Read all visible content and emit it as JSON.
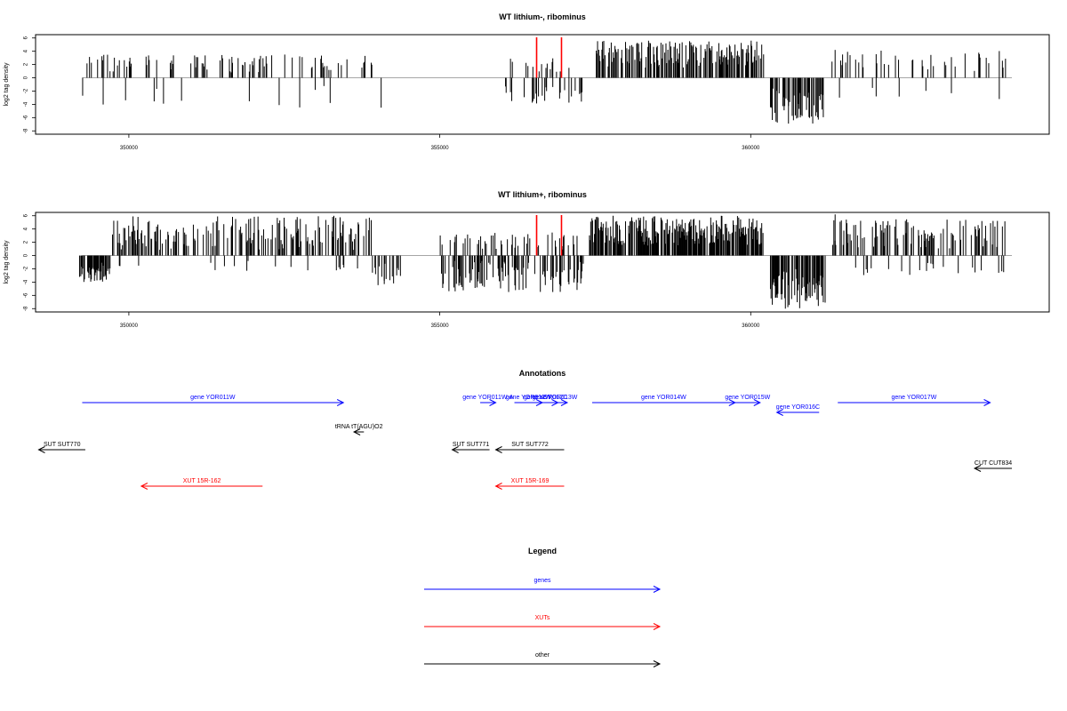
{
  "colors": {
    "gene": "#0000ff",
    "xut": "#ff0000",
    "other": "#000000",
    "mark": "#ff0000",
    "bar": "#000000",
    "axis": "#000000"
  },
  "chart_data": [
    {
      "type": "bar",
      "title": "WT lithium-, ribominus",
      "ylabel": "log2 tag density",
      "xlim": [
        348500,
        364800
      ],
      "ylim": [
        -8.5,
        6.5
      ],
      "xticks": [
        350000,
        355000,
        360000
      ],
      "yticks": [
        -8,
        -6,
        -4,
        -2,
        0,
        2,
        4,
        6
      ],
      "baseline_range": [
        349250,
        364200
      ],
      "red_markers": [
        356550,
        356950
      ],
      "segments": [
        {
          "from": 349200,
          "to": 354000,
          "side": "pos",
          "prob": 0.16,
          "max": 3.5,
          "min": 0.8
        },
        {
          "from": 349200,
          "to": 354000,
          "side": "neg",
          "prob": 0.02,
          "max": 4.5,
          "min": 1
        },
        {
          "from": 356000,
          "to": 357300,
          "side": "neg",
          "prob": 0.18,
          "max": 4.0,
          "min": 1
        },
        {
          "from": 356000,
          "to": 357300,
          "side": "pos",
          "prob": 0.08,
          "max": 3.0,
          "min": 0.8
        },
        {
          "from": 357500,
          "to": 360200,
          "side": "pos",
          "prob": 0.55,
          "max": 5.6,
          "min": 1.5
        },
        {
          "from": 360300,
          "to": 361200,
          "side": "neg",
          "prob": 0.6,
          "max": 7.0,
          "min": 1.5
        },
        {
          "from": 361300,
          "to": 364100,
          "side": "pos",
          "prob": 0.14,
          "max": 4.2,
          "min": 1
        },
        {
          "from": 361300,
          "to": 364100,
          "side": "neg",
          "prob": 0.02,
          "max": 3.0,
          "min": 1
        }
      ],
      "bars": [
        {
          "x": 349250,
          "y": -2.7
        },
        {
          "x": 350550,
          "y": -3.9
        },
        {
          "x": 354050,
          "y": -4.5
        },
        {
          "x": 360000,
          "y": 5.6
        },
        {
          "x": 360600,
          "y": -6.9
        },
        {
          "x": 352500,
          "y": 3.5
        },
        {
          "x": 363990,
          "y": -3.2
        },
        {
          "x": 361350,
          "y": 4.2
        }
      ]
    },
    {
      "type": "bar",
      "title": "WT lithium+, ribominus",
      "ylabel": "log2 tag density",
      "xlim": [
        348500,
        364800
      ],
      "ylim": [
        -8.5,
        6.5
      ],
      "xticks": [
        350000,
        355000,
        360000
      ],
      "yticks": [
        -8,
        -6,
        -4,
        -2,
        0,
        2,
        4,
        6
      ],
      "baseline_range": [
        349250,
        364200
      ],
      "red_markers": [
        356550,
        356950
      ],
      "segments": [
        {
          "from": 349200,
          "to": 349700,
          "side": "neg",
          "prob": 0.7,
          "max": 4.0,
          "min": 1
        },
        {
          "from": 349700,
          "to": 353900,
          "side": "pos",
          "prob": 0.35,
          "max": 6.0,
          "min": 0.8
        },
        {
          "from": 349700,
          "to": 353900,
          "side": "neg",
          "prob": 0.05,
          "max": 2.5,
          "min": 0.8
        },
        {
          "from": 353900,
          "to": 354400,
          "side": "neg",
          "prob": 0.35,
          "max": 4.5,
          "min": 1
        },
        {
          "from": 355000,
          "to": 357300,
          "side": "neg",
          "prob": 0.4,
          "max": 5.5,
          "min": 0.8
        },
        {
          "from": 355000,
          "to": 357300,
          "side": "pos",
          "prob": 0.18,
          "max": 3.5,
          "min": 0.8
        },
        {
          "from": 357400,
          "to": 360200,
          "side": "pos",
          "prob": 0.75,
          "max": 6.0,
          "min": 1.5
        },
        {
          "from": 360300,
          "to": 361200,
          "side": "neg",
          "prob": 0.8,
          "max": 8.0,
          "min": 2
        },
        {
          "from": 361300,
          "to": 364100,
          "side": "pos",
          "prob": 0.35,
          "max": 5.5,
          "min": 1
        },
        {
          "from": 361300,
          "to": 364100,
          "side": "neg",
          "prob": 0.06,
          "max": 3.0,
          "min": 1
        }
      ],
      "bars": [
        {
          "x": 360550,
          "y": -8.0
        },
        {
          "x": 361350,
          "y": 6.2
        },
        {
          "x": 354100,
          "y": -4.3
        },
        {
          "x": 352700,
          "y": 5.8
        },
        {
          "x": 363980,
          "y": -2.6
        }
      ]
    }
  ],
  "annotations": {
    "title": "Annotations",
    "features": [
      {
        "label": "gene YOR011W",
        "kind": "gene",
        "from": 349250,
        "to": 353450,
        "strand": "+",
        "row": 0
      },
      {
        "label": "gene YOR011W-A",
        "kind": "gene",
        "from": 355650,
        "to": 355900,
        "strand": "+",
        "row": 0
      },
      {
        "label": "gene YOR012W",
        "kind": "gene",
        "from": 356200,
        "to": 356650,
        "strand": "+",
        "row": 0
      },
      {
        "label": "gene YOR012C",
        "kind": "gene",
        "from": 356500,
        "to": 356900,
        "strand": "+",
        "row": 0
      },
      {
        "label": "gene YOR013W",
        "kind": "gene",
        "from": 356650,
        "to": 357050,
        "strand": "+",
        "row": 0
      },
      {
        "label": "gene YOR014W",
        "kind": "gene",
        "from": 357450,
        "to": 359750,
        "strand": "+",
        "row": 0
      },
      {
        "label": "gene YOR015W",
        "kind": "gene",
        "from": 359750,
        "to": 360150,
        "strand": "+",
        "row": 0
      },
      {
        "label": "gene YOR016C",
        "kind": "gene",
        "from": 360420,
        "to": 361100,
        "strand": "-",
        "row": 1
      },
      {
        "label": "gene YOR017W",
        "kind": "gene",
        "from": 361400,
        "to": 363850,
        "strand": "+",
        "row": 0
      },
      {
        "label": "tRNA tT(AGU)O2",
        "kind": "other",
        "from": 353620,
        "to": 353780,
        "strand": "-",
        "row": 2
      },
      {
        "label": "SUT SUT770",
        "kind": "other",
        "from": 348550,
        "to": 349300,
        "strand": "-",
        "row": 3
      },
      {
        "label": "SUT SUT771",
        "kind": "other",
        "from": 355200,
        "to": 355800,
        "strand": "-",
        "row": 3
      },
      {
        "label": "SUT SUT772",
        "kind": "other",
        "from": 355900,
        "to": 357000,
        "strand": "-",
        "row": 3
      },
      {
        "label": "CUT CUT834",
        "kind": "other",
        "from": 363600,
        "to": 364200,
        "strand": "-",
        "row": 4
      },
      {
        "label": "XUT 15R-162",
        "kind": "xut",
        "from": 350200,
        "to": 352150,
        "strand": "-",
        "row": 5
      },
      {
        "label": "XUT 15R-169",
        "kind": "xut",
        "from": 355900,
        "to": 357000,
        "strand": "-",
        "row": 5
      }
    ]
  },
  "legend": {
    "title": "Legend",
    "items": [
      {
        "label": "genes",
        "kind": "gene"
      },
      {
        "label": "XUTs",
        "kind": "xut"
      },
      {
        "label": "other",
        "kind": "other"
      }
    ]
  }
}
